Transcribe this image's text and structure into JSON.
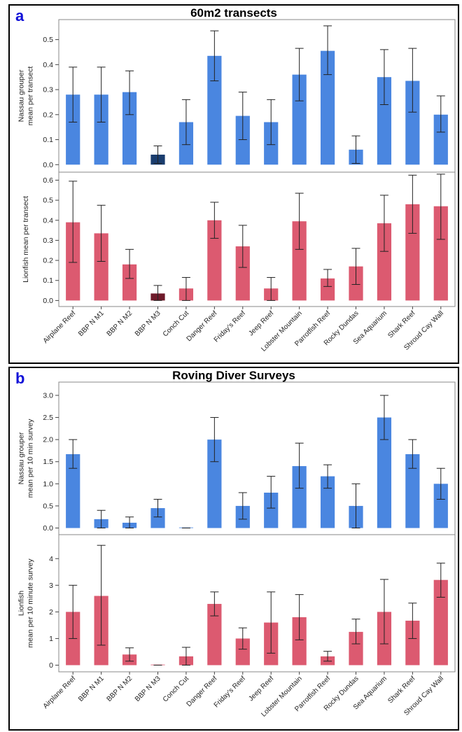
{
  "colors": {
    "nassau_bar": "#4a86e0",
    "nassau_highlight": "#1a3d6e",
    "lionfish_bar": "#dc5a70",
    "lionfish_highlight": "#6e1a2a",
    "panel_letter": "#1010d8"
  },
  "panel_a": {
    "letter": "a",
    "title": "60m2 transects"
  },
  "panel_b": {
    "letter": "b",
    "title": "Roving Diver Surveys"
  },
  "chart_data": [
    {
      "type": "bar",
      "panel": "a",
      "categories": [
        "Airplane Reef",
        "BBP N M1",
        "BBP N M2",
        "BBP N M3",
        "Conch Cut",
        "Danger Reef",
        "Friday's Reef",
        "Jeep Reef",
        "Lobster Mountain",
        "Parrotfish Reef",
        "Rocky Dundas",
        "Sea Aquarium",
        "Shark Reef",
        "Shroud Cay Wall"
      ],
      "values": [
        0.28,
        0.28,
        0.29,
        0.04,
        0.17,
        0.435,
        0.195,
        0.17,
        0.36,
        0.455,
        0.06,
        0.35,
        0.335,
        0.2
      ],
      "err_low": [
        0.17,
        0.17,
        0.2,
        0.005,
        0.08,
        0.335,
        0.1,
        0.08,
        0.255,
        0.36,
        0.005,
        0.24,
        0.21,
        0.13
      ],
      "err_high": [
        0.39,
        0.39,
        0.375,
        0.075,
        0.26,
        0.535,
        0.29,
        0.26,
        0.465,
        0.555,
        0.115,
        0.46,
        0.465,
        0.275
      ],
      "highlight_index": 3,
      "ylabel": [
        "Nassau grouper",
        "mean per transect"
      ],
      "ylim": [
        -0.03,
        0.58
      ],
      "yticks": [
        0.0,
        0.1,
        0.2,
        0.3,
        0.4,
        0.5
      ],
      "ytick_labels": [
        "0.0",
        "0.1",
        "0.2",
        "0.3",
        "0.4",
        "0.5"
      ],
      "series_color": "nassau",
      "show_categories": false
    },
    {
      "type": "bar",
      "panel": "a",
      "categories": [
        "Airplane Reef",
        "BBP N M1",
        "BBP N M2",
        "BBP N M3",
        "Conch Cut",
        "Danger Reef",
        "Friday's Reef",
        "Jeep Reef",
        "Lobster Mountain",
        "Parrotfish Reef",
        "Rocky Dundas",
        "Sea Aquarium",
        "Shark Reef",
        "Shroud Cay Wall"
      ],
      "values": [
        0.39,
        0.335,
        0.18,
        0.035,
        0.06,
        0.4,
        0.27,
        0.06,
        0.395,
        0.11,
        0.17,
        0.385,
        0.48,
        0.47
      ],
      "err_low": [
        0.19,
        0.195,
        0.11,
        0.0,
        0.0,
        0.31,
        0.165,
        0.0,
        0.255,
        0.07,
        0.08,
        0.245,
        0.335,
        0.305
      ],
      "err_high": [
        0.595,
        0.475,
        0.255,
        0.075,
        0.115,
        0.49,
        0.375,
        0.115,
        0.535,
        0.155,
        0.26,
        0.525,
        0.625,
        0.63
      ],
      "highlight_index": 3,
      "ylabel": [
        "Lionfish mean per transect"
      ],
      "ylim": [
        -0.03,
        0.64
      ],
      "yticks": [
        0.0,
        0.1,
        0.2,
        0.3,
        0.4,
        0.5,
        0.6
      ],
      "ytick_labels": [
        "0.0",
        "0.1",
        "0.2",
        "0.3",
        "0.4",
        "0.5",
        "0.6"
      ],
      "series_color": "lionfish",
      "show_categories": true
    },
    {
      "type": "bar",
      "panel": "b",
      "categories": [
        "Airplane Reef",
        "BBP N M1",
        "BBP N M2",
        "BBP N M3",
        "Conch Cut",
        "Danger Reef",
        "Friday's Reef",
        "Jeep Reef",
        "Lobster Mountain",
        "Parrotfish Reef",
        "Rocky Dundas",
        "Sea Aquarium",
        "Shark Reef",
        "Shroud Cay Wall"
      ],
      "values": [
        1.67,
        0.2,
        0.12,
        0.45,
        0.0,
        2.0,
        0.5,
        0.8,
        1.4,
        1.17,
        0.5,
        2.5,
        1.67,
        1.0
      ],
      "err_low": [
        1.35,
        0.0,
        0.0,
        0.25,
        0.0,
        1.5,
        0.2,
        0.45,
        0.9,
        0.9,
        0.0,
        2.0,
        1.35,
        0.65
      ],
      "err_high": [
        2.0,
        0.4,
        0.25,
        0.65,
        0.0,
        2.5,
        0.8,
        1.17,
        1.92,
        1.43,
        1.0,
        3.0,
        2.0,
        1.35
      ],
      "highlight_index": -1,
      "ylabel": [
        "Nassau grouper",
        "mean per 10 min survey"
      ],
      "ylim": [
        -0.15,
        3.3
      ],
      "yticks": [
        0.0,
        0.5,
        1.0,
        1.5,
        2.0,
        2.5,
        3.0
      ],
      "ytick_labels": [
        "0.0",
        "0.5",
        "1.0",
        "1.5",
        "2.0",
        "2.5",
        "3.0"
      ],
      "series_color": "nassau",
      "show_categories": false
    },
    {
      "type": "bar",
      "panel": "b",
      "categories": [
        "Airplane Reef",
        "BBP N M1",
        "BBP N M2",
        "BBP N M3",
        "Conch Cut",
        "Danger Reef",
        "Friday's Reef",
        "Jeep Reef",
        "Lobster Mountain",
        "Parrotfish Reef",
        "Rocky Dundas",
        "Sea Aquarium",
        "Shark Reef",
        "Shroud Cay Wall"
      ],
      "values": [
        2.0,
        2.6,
        0.4,
        0.0,
        0.33,
        2.3,
        1.0,
        1.6,
        1.8,
        0.33,
        1.25,
        2.0,
        1.67,
        3.2
      ],
      "err_low": [
        1.0,
        0.75,
        0.15,
        0.0,
        0.0,
        1.85,
        0.6,
        0.45,
        0.95,
        0.15,
        0.8,
        0.8,
        1.0,
        2.55
      ],
      "err_high": [
        3.0,
        4.5,
        0.65,
        0.0,
        0.67,
        2.75,
        1.4,
        2.75,
        2.65,
        0.52,
        1.73,
        3.22,
        2.33,
        3.83
      ],
      "highlight_index": -1,
      "ylabel": [
        "Lionfish",
        "mean per 10 minute survey"
      ],
      "ylim": [
        -0.25,
        4.9
      ],
      "yticks": [
        0,
        1,
        2,
        3,
        4
      ],
      "ytick_labels": [
        "0",
        "1",
        "2",
        "3",
        "4"
      ],
      "series_color": "lionfish",
      "show_categories": true
    }
  ]
}
